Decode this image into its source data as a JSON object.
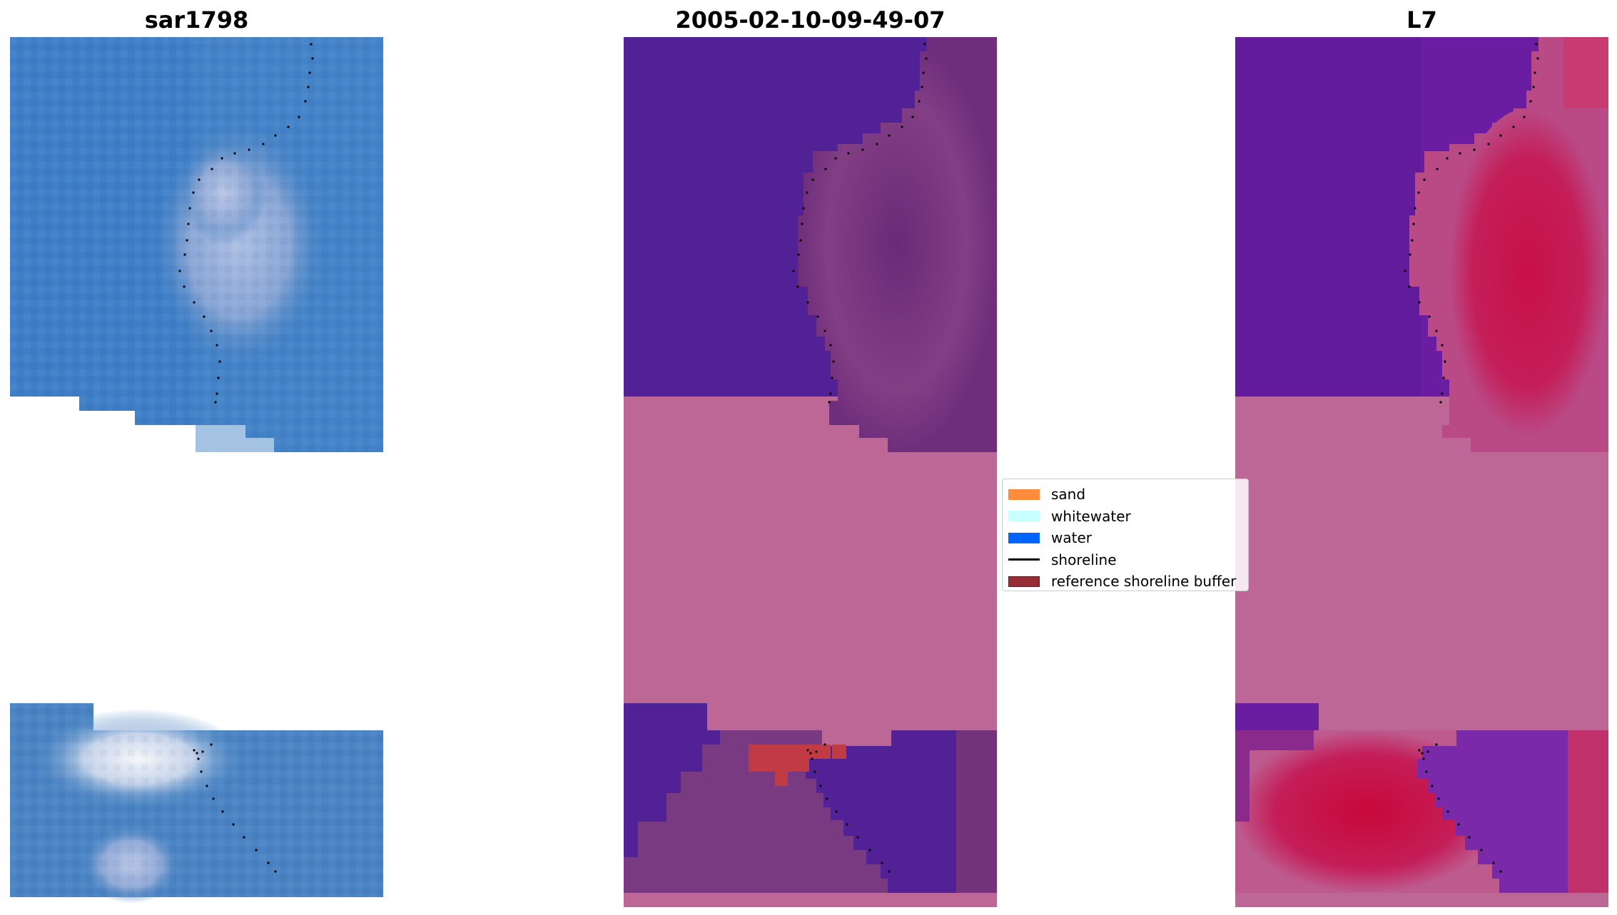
{
  "panels": [
    {
      "id": "rgb",
      "title": "sar1798"
    },
    {
      "id": "classified",
      "title": "2005-02-10-09-49-07"
    },
    {
      "id": "index",
      "title": "L7"
    }
  ],
  "legend": {
    "items": [
      {
        "label": "sand",
        "type": "patch",
        "color": "#ff8c3c"
      },
      {
        "label": "whitewater",
        "type": "patch",
        "color": "#c8ffff"
      },
      {
        "label": "water",
        "type": "patch",
        "color": "#0064ff"
      },
      {
        "label": "shoreline",
        "type": "line",
        "color": "#000000"
      },
      {
        "label": "reference shoreline buffer",
        "type": "patch",
        "color": "#962d37"
      }
    ]
  },
  "colors": {
    "rgb_water": "#3f7fc8",
    "rgb_water_alt": "#4a86c4",
    "rgb_bright": "#9fb6d8",
    "rgb_white": "#e8ecf4",
    "class_water": "#532196",
    "class_land": "#6f2e7c",
    "class_land_light": "#8a4a8a",
    "buffer_pink": "#bd6796",
    "buffer_red": "#c13b45",
    "index_purple": "#6a1da0",
    "index_magenta": "#b02a6a",
    "index_red": "#c8174e",
    "shoreline_dots": "#000000"
  }
}
